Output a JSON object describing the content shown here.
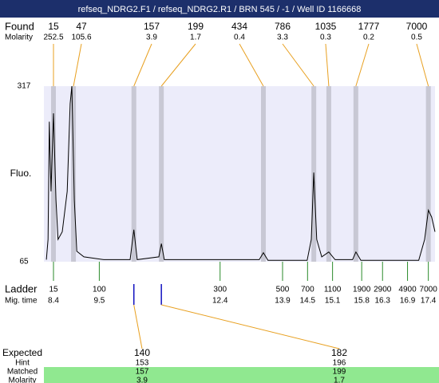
{
  "chart_data": {
    "type": "line",
    "title": "refseq_NDRG2.F1 / refseq_NDRG2.R1 / BRN 545 / -1 / Well ID 1166668",
    "ylabel": "Fluo.",
    "ylim": [
      65,
      317
    ],
    "yticks": [
      65,
      317
    ],
    "xlim": [
      8.17,
      17.56
    ],
    "x": [
      8.23,
      8.27,
      8.3,
      8.34,
      8.4,
      8.46,
      8.51,
      8.61,
      8.73,
      8.8,
      8.84,
      8.9,
      8.96,
      9.13,
      9.61,
      10.24,
      10.33,
      10.41,
      10.93,
      10.99,
      11.06,
      13.34,
      13.44,
      13.55,
      14.49,
      14.59,
      14.65,
      14.72,
      14.84,
      15.01,
      15.16,
      15.58,
      15.66,
      15.78,
      17.17,
      17.31,
      17.4,
      17.48,
      17.56
    ],
    "values": [
      68,
      97,
      266,
      166,
      278,
      154,
      97,
      108,
      166,
      292,
      317,
      154,
      80,
      72,
      68,
      68,
      111,
      68,
      72,
      91,
      68,
      68,
      78,
      67,
      67,
      97,
      193,
      97,
      72,
      79,
      68,
      68,
      79,
      67,
      67,
      97,
      139,
      129,
      108
    ],
    "color": "#000000",
    "found": {
      "label": "Found",
      "sizes": [
        15,
        47,
        157,
        199,
        434,
        786,
        1035,
        1777,
        7000
      ],
      "times": [
        8.4,
        8.88,
        10.33,
        10.99,
        13.44,
        14.65,
        15.01,
        15.66,
        17.4
      ],
      "molarity_label": "Molarity",
      "molarity": [
        252.5,
        105.6,
        3.9,
        1.7,
        0.4,
        3.3,
        0.3,
        0.2,
        0.5
      ]
    },
    "ladder": {
      "label": "Ladder",
      "sizes": [
        15,
        100,
        300,
        500,
        700,
        1100,
        1900,
        2900,
        4900,
        7000
      ],
      "time_label": "Mig. time",
      "times": [
        8.4,
        9.5,
        12.4,
        13.9,
        14.5,
        15.1,
        15.8,
        16.3,
        16.9,
        17.4
      ]
    },
    "expected": {
      "matched_times": [
        10.33,
        10.99
      ],
      "rows": [
        {
          "label": "Expected",
          "values": [
            140,
            182
          ]
        },
        {
          "label": "Hint",
          "values": [
            153,
            196
          ]
        },
        {
          "label": "Matched",
          "values": [
            157,
            199
          ]
        },
        {
          "label": "Molarity",
          "values": [
            3.9,
            1.7
          ]
        }
      ]
    }
  }
}
